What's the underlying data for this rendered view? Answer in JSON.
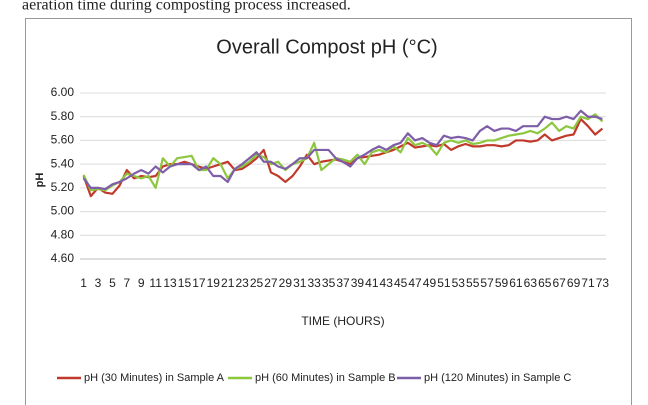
{
  "text_above": "aeration time during composting process increased.",
  "chart_data": {
    "type": "line",
    "title": "Overall Compost pH (°C)",
    "x_label": "TIME (HOURS)",
    "y_label": "pH",
    "categories": [
      1,
      null,
      3,
      null,
      5,
      null,
      7,
      null,
      9,
      null,
      11,
      null,
      13,
      null,
      15,
      null,
      17,
      null,
      19,
      null,
      21,
      null,
      23,
      null,
      25,
      null,
      27,
      null,
      29,
      null,
      31,
      null,
      33,
      null,
      35,
      null,
      37,
      null,
      39,
      null,
      41,
      null,
      43,
      null,
      45,
      null,
      47,
      null,
      49,
      null,
      51,
      null,
      53,
      null,
      55,
      null,
      57,
      null,
      59,
      null,
      61,
      null,
      63,
      null,
      65,
      null,
      67,
      null,
      69,
      null,
      71,
      null,
      73
    ],
    "ylim": [
      4.6,
      6.0
    ],
    "yticks": [
      {
        "value": 4.6,
        "label": "4.60"
      },
      {
        "value": 4.8,
        "label": "4.80"
      },
      {
        "value": 5.0,
        "label": "5.00"
      },
      {
        "value": 5.2,
        "label": "5.20"
      },
      {
        "value": 5.4,
        "label": "5.40"
      },
      {
        "value": 5.6,
        "label": "5.60"
      },
      {
        "value": 5.8,
        "label": "5.80"
      },
      {
        "value": 6.0,
        "label": "6.00"
      }
    ],
    "grid": true,
    "legend": "bottom",
    "series": [
      {
        "name": "pH (30 Minutes) in Sample A",
        "color": "#c0392b",
        "values": [
          5.3,
          5.13,
          5.2,
          5.16,
          5.15,
          5.22,
          5.35,
          5.28,
          5.3,
          5.29,
          5.3,
          5.38,
          5.4,
          5.4,
          5.42,
          5.4,
          5.38,
          5.36,
          5.38,
          5.4,
          5.42,
          5.35,
          5.36,
          5.4,
          5.45,
          5.52,
          5.33,
          5.3,
          5.25,
          5.3,
          5.38,
          5.48,
          5.4,
          5.42,
          5.43,
          5.44,
          5.42,
          5.4,
          5.45,
          5.46,
          5.47,
          5.48,
          5.5,
          5.52,
          5.55,
          5.58,
          5.54,
          5.55,
          5.56,
          5.55,
          5.57,
          5.52,
          5.55,
          5.57,
          5.55,
          5.55,
          5.56,
          5.56,
          5.55,
          5.56,
          5.6,
          5.6,
          5.59,
          5.6,
          5.65,
          5.6,
          5.62,
          5.64,
          5.65,
          5.78,
          5.72,
          5.65,
          5.7
        ]
      },
      {
        "name": "pH (60 Minutes) in Sample B",
        "color": "#8dc63f",
        "values": [
          5.31,
          5.18,
          5.19,
          5.18,
          5.22,
          5.25,
          5.32,
          5.3,
          5.28,
          5.3,
          5.2,
          5.45,
          5.38,
          5.45,
          5.46,
          5.47,
          5.35,
          5.35,
          5.45,
          5.4,
          5.28,
          5.36,
          5.38,
          5.42,
          5.48,
          5.46,
          5.4,
          5.42,
          5.35,
          5.4,
          5.42,
          5.45,
          5.58,
          5.35,
          5.4,
          5.45,
          5.44,
          5.42,
          5.48,
          5.4,
          5.5,
          5.52,
          5.5,
          5.55,
          5.5,
          5.62,
          5.56,
          5.58,
          5.55,
          5.48,
          5.58,
          5.6,
          5.58,
          5.6,
          5.57,
          5.58,
          5.6,
          5.6,
          5.62,
          5.64,
          5.65,
          5.66,
          5.68,
          5.66,
          5.7,
          5.75,
          5.68,
          5.72,
          5.7,
          5.8,
          5.78,
          5.82,
          5.76
        ]
      },
      {
        "name": "pH (120 Minutes) in Sample C",
        "color": "#7e5ea8",
        "values": [
          5.28,
          5.2,
          5.2,
          5.19,
          5.23,
          5.25,
          5.28,
          5.32,
          5.35,
          5.32,
          5.38,
          5.33,
          5.38,
          5.4,
          5.4,
          5.4,
          5.35,
          5.38,
          5.3,
          5.3,
          5.25,
          5.36,
          5.4,
          5.45,
          5.5,
          5.42,
          5.42,
          5.38,
          5.36,
          5.4,
          5.45,
          5.45,
          5.52,
          5.52,
          5.52,
          5.45,
          5.42,
          5.38,
          5.45,
          5.48,
          5.52,
          5.55,
          5.52,
          5.56,
          5.58,
          5.66,
          5.6,
          5.62,
          5.58,
          5.56,
          5.64,
          5.62,
          5.63,
          5.62,
          5.6,
          5.68,
          5.72,
          5.68,
          5.7,
          5.7,
          5.68,
          5.72,
          5.72,
          5.72,
          5.8,
          5.78,
          5.78,
          5.8,
          5.78,
          5.85,
          5.8,
          5.8,
          5.78
        ]
      }
    ]
  }
}
